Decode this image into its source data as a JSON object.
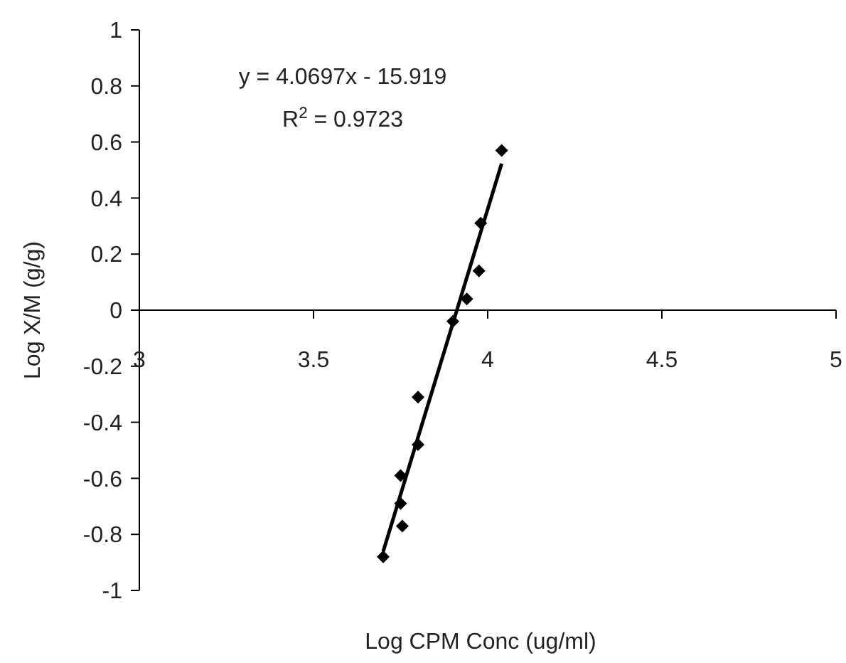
{
  "chart_data": {
    "type": "scatter",
    "xlabel": "Log CPM Conc (ug/ml)",
    "ylabel": "Log X/M (g/g)",
    "xlim": [
      3,
      5
    ],
    "xticks": [
      3,
      3.5,
      4,
      4.5,
      5
    ],
    "ylim": [
      -1,
      1
    ],
    "yticks": [
      -1,
      -0.8,
      -0.6,
      -0.4,
      -0.2,
      0,
      0.2,
      0.4,
      0.6,
      0.8,
      1
    ],
    "marker": "diamond",
    "annotations": [
      "y = 4.0697x - 15.919",
      "R$^{2}$ = 0.9723"
    ],
    "series": [
      {
        "color": "#000000",
        "x": [
          4.04,
          3.98,
          3.975,
          3.94,
          3.9,
          3.8,
          3.8,
          3.75,
          3.75,
          3.755,
          3.7
        ],
        "values": [
          0.57,
          0.31,
          0.14,
          0.04,
          -0.04,
          -0.31,
          -0.48,
          -0.59,
          -0.69,
          -0.77,
          -0.88
        ]
      },
      {
        "type": "line",
        "color": "#000000",
        "marker": "none",
        "x": [
          3.7,
          4.04
        ],
        "values": [
          -0.861,
          0.523
        ]
      }
    ]
  }
}
